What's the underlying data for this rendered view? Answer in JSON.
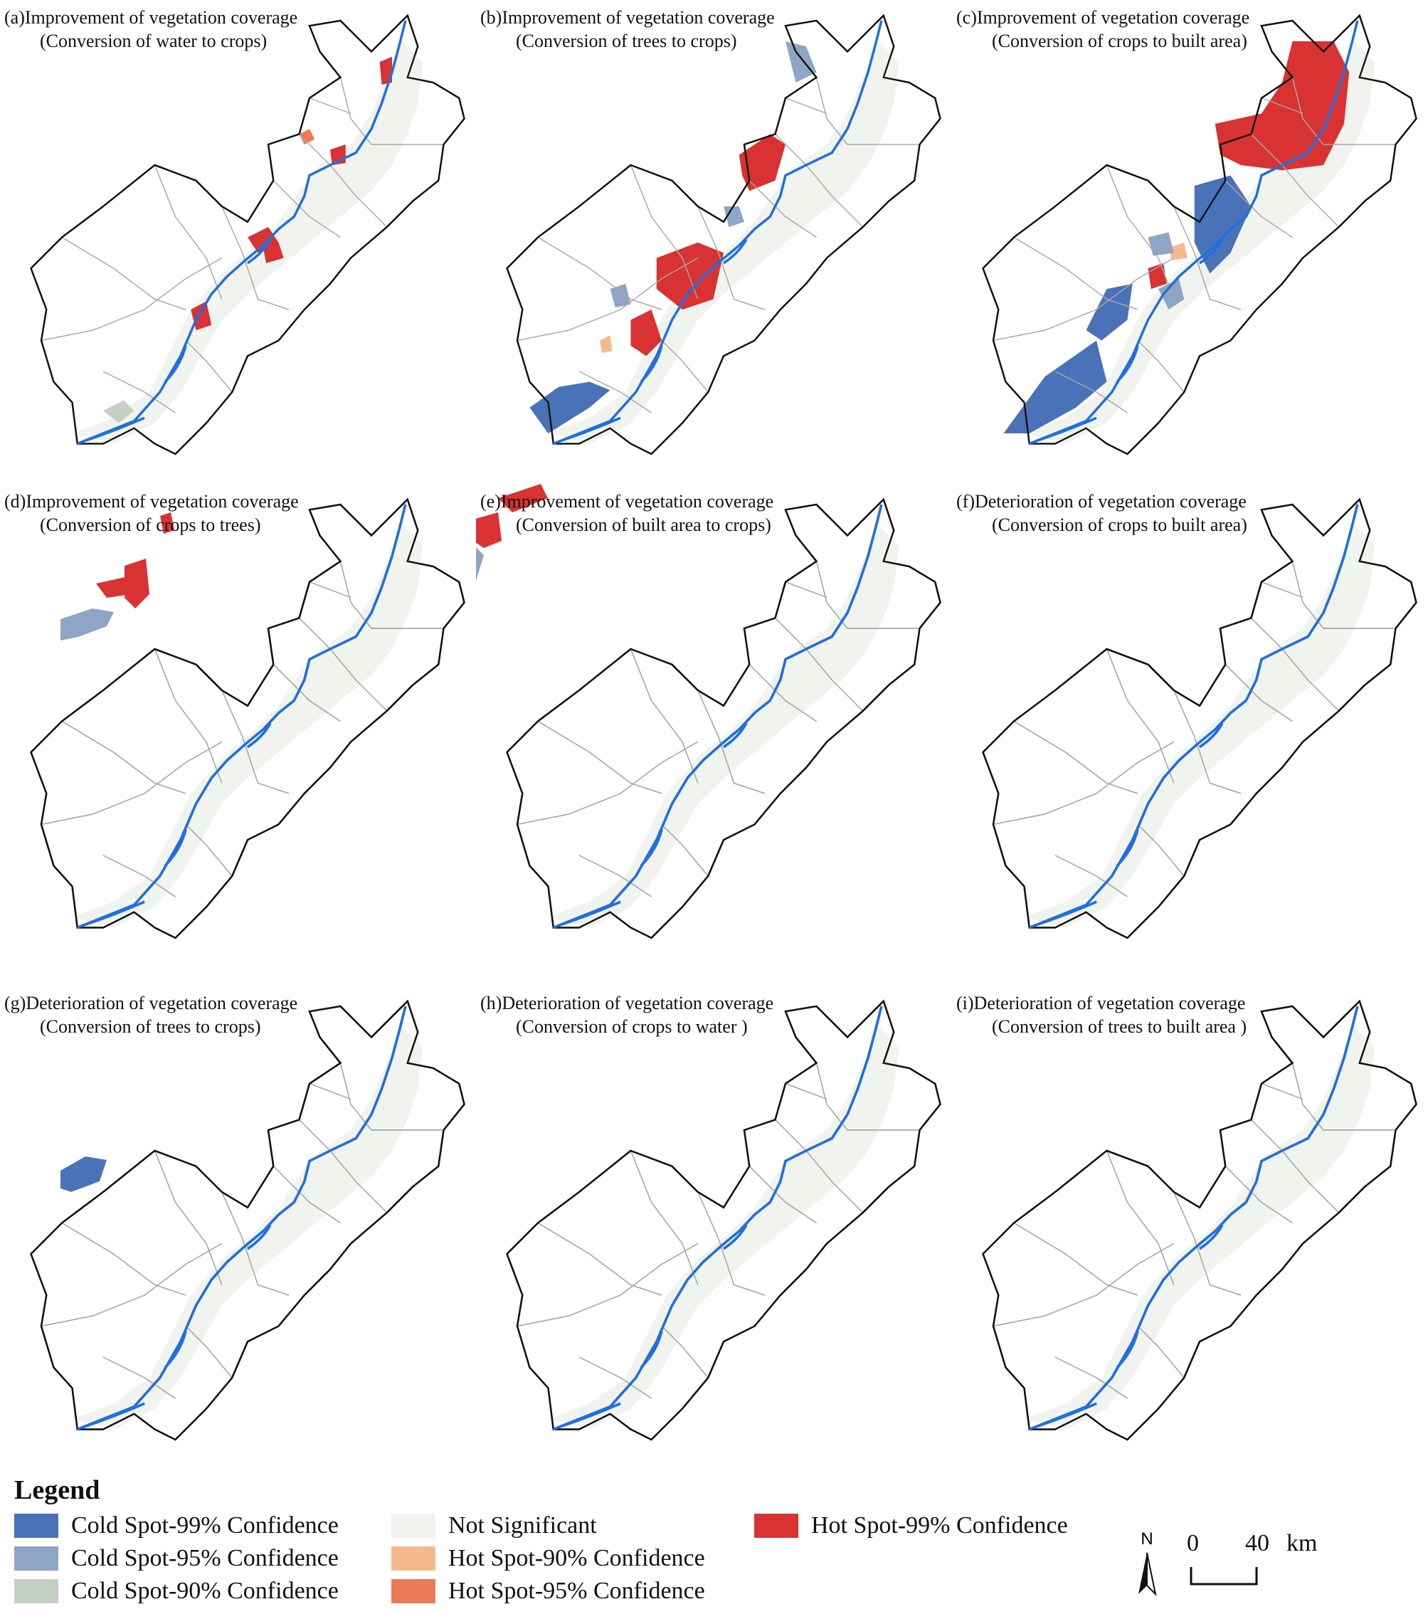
{
  "panels": [
    {
      "id": "a",
      "title_line1": "(a)Improvement of vegetation coverage",
      "title_line2": "(Conversion of water to crops)"
    },
    {
      "id": "b",
      "title_line1": "(b)Improvement of vegetation coverage",
      "title_line2": "(Conversion of trees to crops)"
    },
    {
      "id": "c",
      "title_line1": "(c)Improvement of vegetation coverage",
      "title_line2": "(Conversion of crops to built area)"
    },
    {
      "id": "d",
      "title_line1": "(d)Improvement of vegetation coverage",
      "title_line2": "(Conversion of crops to trees)"
    },
    {
      "id": "e",
      "title_line1": "(e)Improvement of vegetation coverage",
      "title_line2": "(Conversion of built area to crops)"
    },
    {
      "id": "f",
      "title_line1": "(f)Deterioration of vegetation coverage",
      "title_line2": "(Conversion of crops to built area)"
    },
    {
      "id": "g",
      "title_line1": "(g)Deterioration of vegetation coverage",
      "title_line2": "(Conversion of trees  to crops)"
    },
    {
      "id": "h",
      "title_line1": "(h)Deterioration of vegetation coverage",
      "title_line2": "(Conversion of crops  to water )"
    },
    {
      "id": "i",
      "title_line1": "(i)Deterioration of vegetation coverage",
      "title_line2": "(Conversion of trees  to built area )"
    }
  ],
  "legend": {
    "title": "Legend",
    "items": [
      {
        "label": "Cold Spot-99% Confidence",
        "color": "#4a72b8"
      },
      {
        "label": "Cold Spot-95% Confidence",
        "color": "#8fa5c6"
      },
      {
        "label": "Cold Spot-90% Confidence",
        "color": "#c4d0c2"
      },
      {
        "label": "Not Significant",
        "color": "#f1f3ee"
      },
      {
        "label": "Hot Spot-90% Confidence",
        "color": "#f6b98e"
      },
      {
        "label": "Hot Spot-95% Confidence",
        "color": "#ec7a55"
      },
      {
        "label": "Hot Spot-99% Confidence",
        "color": "#d83232"
      }
    ]
  },
  "scale_bar": {
    "north_label": "N",
    "zero": "0",
    "distance": "40",
    "unit": "km"
  },
  "colors": {
    "river": "#1f6fe0",
    "outline": "#111111",
    "district_lines": "#a8a8a8"
  }
}
